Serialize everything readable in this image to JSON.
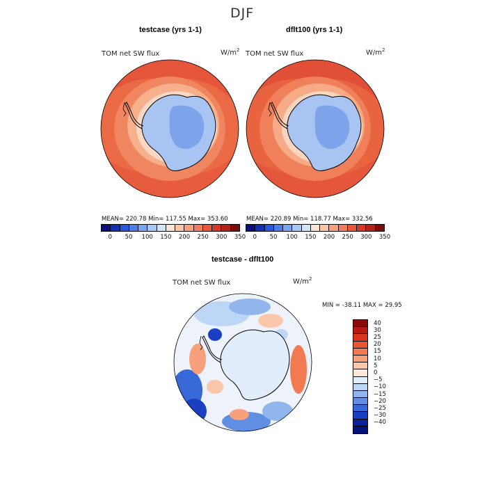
{
  "page_title": "DJF",
  "chart_data": [
    {
      "type": "heatmap",
      "projection": "south polar stereographic",
      "title": "testcase (yrs 1-1)",
      "variable": "TOM net SW flux",
      "units": "W/m²",
      "units_base": "W/m",
      "units_exp": "2",
      "stats_text": "MEAN= 220.78   Min= 117.55   Max= 353.60",
      "stats": {
        "mean": 220.78,
        "min": 117.55,
        "max": 353.6
      },
      "colorbar_ticks": [
        0,
        50,
        100,
        150,
        200,
        250,
        300,
        350
      ],
      "colorbar_labels": [
        "0",
        "50",
        "100",
        "150",
        "200",
        "250",
        "300",
        "350"
      ],
      "colorbar_colors": [
        "#0a0f7a",
        "#1230b4",
        "#2a55dd",
        "#4a7de8",
        "#7aa6f0",
        "#a9c6f5",
        "#d2e3fa",
        "#fbe4d5",
        "#f9c6a8",
        "#f6a27f",
        "#f27e59",
        "#e65a3a",
        "#d33a25",
        "#b5201a",
        "#7f0d0a"
      ]
    },
    {
      "type": "heatmap",
      "projection": "south polar stereographic",
      "title": "dflt100 (yrs 1-1)",
      "variable": "TOM net SW flux",
      "units": "W/m²",
      "units_base": "W/m",
      "units_exp": "2",
      "stats_text": "MEAN= 220.89   Min= 118.77   Max= 332.56",
      "stats": {
        "mean": 220.89,
        "min": 118.77,
        "max": 332.56
      },
      "colorbar_ticks": [
        0,
        50,
        100,
        150,
        200,
        250,
        300,
        350
      ],
      "colorbar_labels": [
        "0",
        "50",
        "100",
        "150",
        "200",
        "250",
        "300",
        "350"
      ],
      "colorbar_colors": [
        "#0a0f7a",
        "#1230b4",
        "#2a55dd",
        "#4a7de8",
        "#7aa6f0",
        "#a9c6f5",
        "#d2e3fa",
        "#fbe4d5",
        "#f9c6a8",
        "#f6a27f",
        "#f27e59",
        "#e65a3a",
        "#d33a25",
        "#b5201a",
        "#7f0d0a"
      ]
    },
    {
      "type": "heatmap",
      "projection": "south polar stereographic",
      "title": "testcase - dflt100",
      "variable": "TOM net SW flux",
      "units": "W/m²",
      "units_base": "W/m",
      "units_exp": "2",
      "stats_text": "MIN = -38.11  MAX =  29.95",
      "stats": {
        "min": -38.11,
        "max": 29.95
      },
      "colorbar_ticks": [
        40,
        30,
        25,
        20,
        15,
        10,
        5,
        0,
        -5,
        -10,
        -15,
        -20,
        -25,
        -30,
        -40
      ],
      "colorbar_labels": [
        "40",
        "30",
        "25",
        "20",
        "15",
        "10",
        "5",
        "0",
        "−5",
        "−10",
        "−15",
        "−20",
        "−25",
        "−30",
        "−40"
      ],
      "colorbar_colors": [
        "#8b0a0a",
        "#b81a12",
        "#d9351f",
        "#ea5534",
        "#f27a52",
        "#f7a07b",
        "#fbc7aa",
        "#fde7d9",
        "#e1edfb",
        "#bdd5f6",
        "#91b6ee",
        "#5f8ee3",
        "#3867d8",
        "#1b3fc2",
        "#0b1f9a",
        "#05107a"
      ]
    }
  ]
}
